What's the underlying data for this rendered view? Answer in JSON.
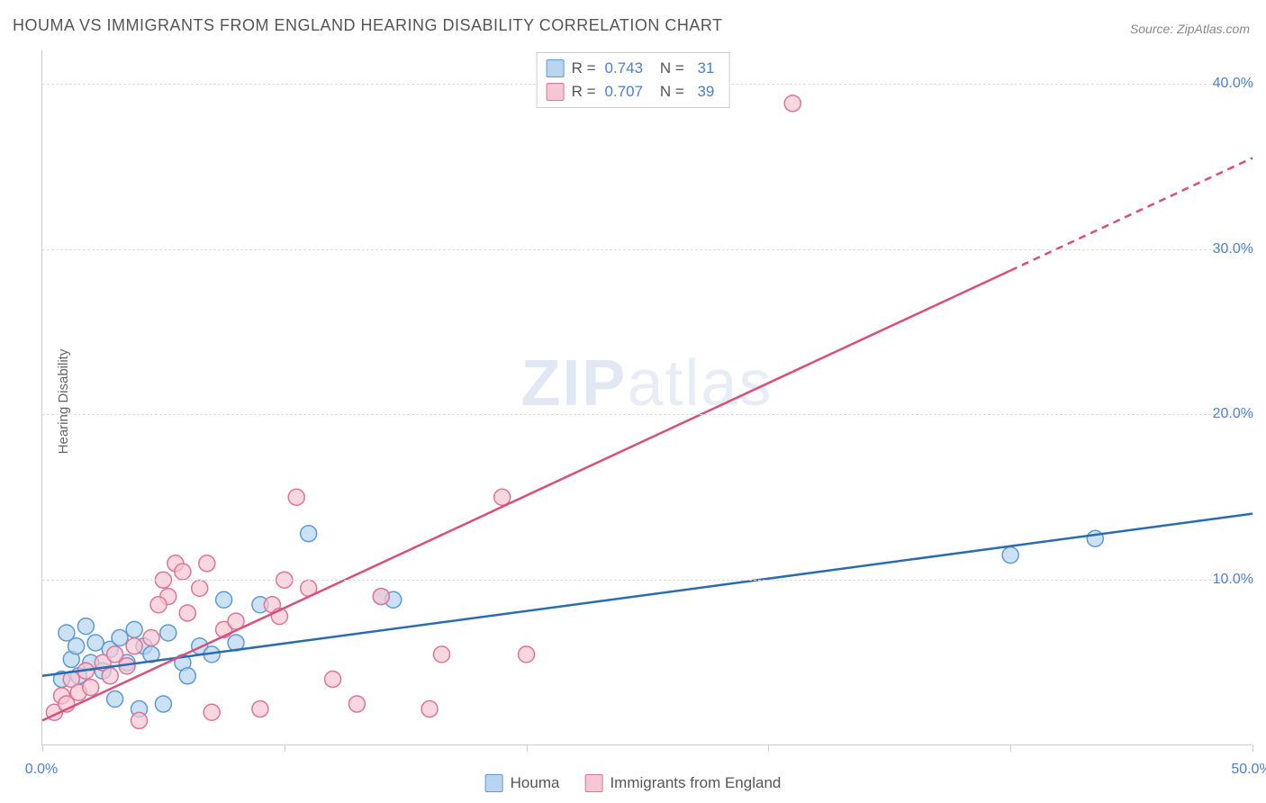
{
  "title": "HOUMA VS IMMIGRANTS FROM ENGLAND HEARING DISABILITY CORRELATION CHART",
  "source_label": "Source: ZipAtlas.com",
  "y_axis_title": "Hearing Disability",
  "watermark_bold": "ZIP",
  "watermark_light": "atlas",
  "chart": {
    "type": "scatter",
    "background_color": "#ffffff",
    "grid_color": "#dddddd",
    "axis_color": "#cccccc",
    "value_color": "#4a7fd6",
    "label_color": "#666666",
    "xlim": [
      0,
      50
    ],
    "ylim": [
      0,
      42
    ],
    "x_ticks": [
      0,
      10,
      20,
      30,
      40,
      50
    ],
    "y_ticks": [
      10,
      20,
      30,
      40
    ],
    "x_tick_labels": {
      "0": "0.0%",
      "50": "50.0%"
    },
    "y_tick_labels": {
      "10": "10.0%",
      "20": "20.0%",
      "30": "30.0%",
      "40": "40.0%"
    },
    "marker_radius": 9,
    "marker_stroke_width": 1.5,
    "trend_line_width": 2.5,
    "series": [
      {
        "name": "Houma",
        "fill_color": "#b8d4f0",
        "stroke_color": "#5a9bd5",
        "line_color": "#2b6cb0",
        "R": "0.743",
        "N": "31",
        "trend": {
          "x1": 0,
          "y1": 4.2,
          "x2": 50,
          "y2": 14.0,
          "dashed_from_x": null
        },
        "points": [
          [
            0.8,
            4.0
          ],
          [
            1.0,
            6.8
          ],
          [
            1.2,
            5.2
          ],
          [
            1.4,
            6.0
          ],
          [
            1.5,
            4.2
          ],
          [
            1.8,
            7.2
          ],
          [
            2.0,
            5.0
          ],
          [
            2.2,
            6.2
          ],
          [
            2.5,
            4.5
          ],
          [
            2.8,
            5.8
          ],
          [
            3.0,
            2.8
          ],
          [
            3.2,
            6.5
          ],
          [
            3.5,
            5.0
          ],
          [
            3.8,
            7.0
          ],
          [
            4.0,
            2.2
          ],
          [
            4.2,
            6.0
          ],
          [
            4.5,
            5.5
          ],
          [
            5.0,
            2.5
          ],
          [
            5.2,
            6.8
          ],
          [
            5.8,
            5.0
          ],
          [
            6.0,
            4.2
          ],
          [
            6.5,
            6.0
          ],
          [
            7.0,
            5.5
          ],
          [
            7.5,
            8.8
          ],
          [
            8.0,
            6.2
          ],
          [
            9.0,
            8.5
          ],
          [
            11.0,
            12.8
          ],
          [
            14.0,
            9.0
          ],
          [
            14.5,
            8.8
          ],
          [
            40.0,
            11.5
          ],
          [
            43.5,
            12.5
          ]
        ]
      },
      {
        "name": "Immigrants from England",
        "fill_color": "#f5c6d3",
        "stroke_color": "#e27396",
        "line_color": "#d94f7a",
        "R": "0.707",
        "N": "39",
        "trend": {
          "x1": 0,
          "y1": 1.5,
          "x2": 50,
          "y2": 35.5,
          "dashed_from_x": 40
        },
        "points": [
          [
            0.5,
            2.0
          ],
          [
            0.8,
            3.0
          ],
          [
            1.0,
            2.5
          ],
          [
            1.2,
            4.0
          ],
          [
            1.5,
            3.2
          ],
          [
            1.8,
            4.5
          ],
          [
            2.0,
            3.5
          ],
          [
            2.5,
            5.0
          ],
          [
            2.8,
            4.2
          ],
          [
            3.0,
            5.5
          ],
          [
            3.5,
            4.8
          ],
          [
            3.8,
            6.0
          ],
          [
            4.0,
            1.5
          ],
          [
            4.5,
            6.5
          ],
          [
            5.0,
            10.0
          ],
          [
            5.2,
            9.0
          ],
          [
            5.5,
            11.0
          ],
          [
            5.8,
            10.5
          ],
          [
            6.0,
            8.0
          ],
          [
            6.5,
            9.5
          ],
          [
            7.0,
            2.0
          ],
          [
            7.5,
            7.0
          ],
          [
            8.0,
            7.5
          ],
          [
            9.0,
            2.2
          ],
          [
            9.5,
            8.5
          ],
          [
            10.0,
            10.0
          ],
          [
            10.5,
            15.0
          ],
          [
            11.0,
            9.5
          ],
          [
            12.0,
            4.0
          ],
          [
            13.0,
            2.5
          ],
          [
            14.0,
            9.0
          ],
          [
            16.0,
            2.2
          ],
          [
            16.5,
            5.5
          ],
          [
            19.0,
            15.0
          ],
          [
            20.0,
            5.5
          ],
          [
            31.0,
            38.8
          ],
          [
            9.8,
            7.8
          ],
          [
            6.8,
            11.0
          ],
          [
            4.8,
            8.5
          ]
        ]
      }
    ]
  }
}
